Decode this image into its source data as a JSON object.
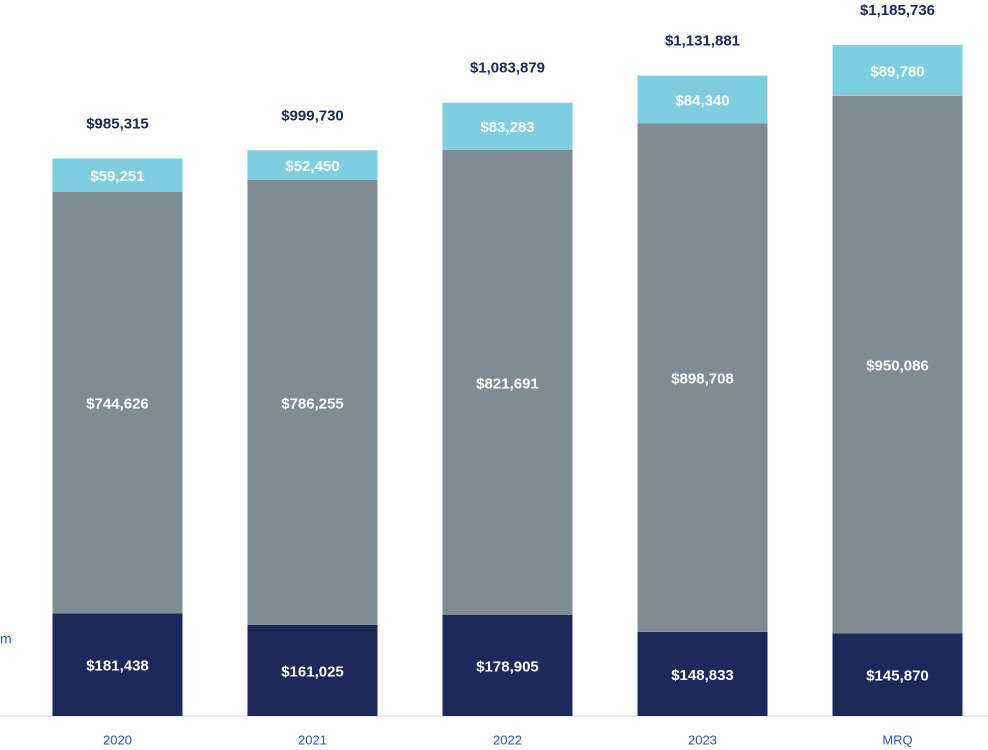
{
  "chart_data": {
    "type": "stacked_bar",
    "categories": [
      "2020",
      "2021",
      "2022",
      "2023",
      "MRQ"
    ],
    "series": [
      {
        "color": "#1b2a5a",
        "values": [
          181438,
          161025,
          178905,
          148833,
          145870
        ],
        "value_labels": [
          "$181,438",
          "$161,025",
          "$178,905",
          "$148,833",
          "$145,870"
        ]
      },
      {
        "color": "#7f8c94",
        "values": [
          744626,
          786255,
          821691,
          898708,
          950086
        ],
        "value_labels": [
          "$744,626",
          "$786,255",
          "$821,691",
          "$898,708",
          "$950,086"
        ]
      },
      {
        "color": "#7dcfe0",
        "values": [
          59251,
          52450,
          83283,
          84340,
          89780
        ],
        "value_labels": [
          "$59,251",
          "$52,450",
          "$83,283",
          "$84,340",
          "$89,780"
        ]
      }
    ],
    "totals": [
      985315,
      999730,
      1083879,
      1131881,
      1185736
    ],
    "total_labels": [
      "$985,315",
      "$999,730",
      "$1,083,879",
      "$1,131,881",
      "$1,185,736"
    ],
    "ylim": [
      0,
      1200000
    ],
    "annotation": "m"
  }
}
